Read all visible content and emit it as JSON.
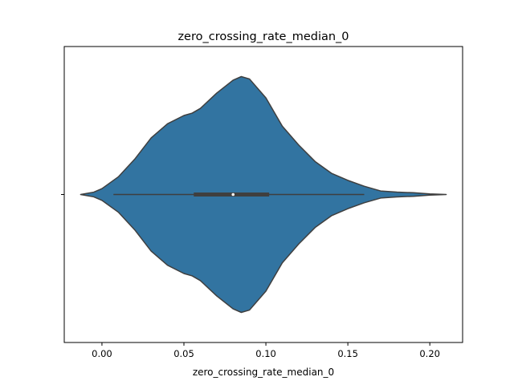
{
  "chart_data": {
    "type": "violin",
    "title": "zero_crossing_rate_median_0",
    "xlabel": "zero_crossing_rate_median_0",
    "ylabel": "",
    "xlim": [
      -0.023,
      0.22
    ],
    "x_ticks": [
      0.0,
      0.05,
      0.1,
      0.15,
      0.2
    ],
    "x_tick_labels": [
      "0.00",
      "0.05",
      "0.10",
      "0.15",
      "0.20"
    ],
    "grid": false,
    "color": "#3274a1",
    "edge_color": "#3f3f3f",
    "violin": {
      "density_profile": [
        {
          "x": -0.013,
          "d": 0.0
        },
        {
          "x": -0.005,
          "d": 0.02
        },
        {
          "x": 0.0,
          "d": 0.05
        },
        {
          "x": 0.01,
          "d": 0.15
        },
        {
          "x": 0.02,
          "d": 0.3
        },
        {
          "x": 0.03,
          "d": 0.48
        },
        {
          "x": 0.04,
          "d": 0.6
        },
        {
          "x": 0.05,
          "d": 0.67
        },
        {
          "x": 0.055,
          "d": 0.69
        },
        {
          "x": 0.06,
          "d": 0.73
        },
        {
          "x": 0.07,
          "d": 0.86
        },
        {
          "x": 0.08,
          "d": 0.97
        },
        {
          "x": 0.085,
          "d": 1.0
        },
        {
          "x": 0.09,
          "d": 0.98
        },
        {
          "x": 0.1,
          "d": 0.82
        },
        {
          "x": 0.11,
          "d": 0.58
        },
        {
          "x": 0.12,
          "d": 0.42
        },
        {
          "x": 0.13,
          "d": 0.28
        },
        {
          "x": 0.14,
          "d": 0.18
        },
        {
          "x": 0.15,
          "d": 0.12
        },
        {
          "x": 0.16,
          "d": 0.07
        },
        {
          "x": 0.17,
          "d": 0.03
        },
        {
          "x": 0.18,
          "d": 0.02
        },
        {
          "x": 0.19,
          "d": 0.015
        },
        {
          "x": 0.2,
          "d": 0.005
        },
        {
          "x": 0.21,
          "d": 0.0
        }
      ],
      "whisker_low": 0.007,
      "q1": 0.056,
      "median": 0.08,
      "q3": 0.102,
      "whisker_high": 0.16
    }
  }
}
